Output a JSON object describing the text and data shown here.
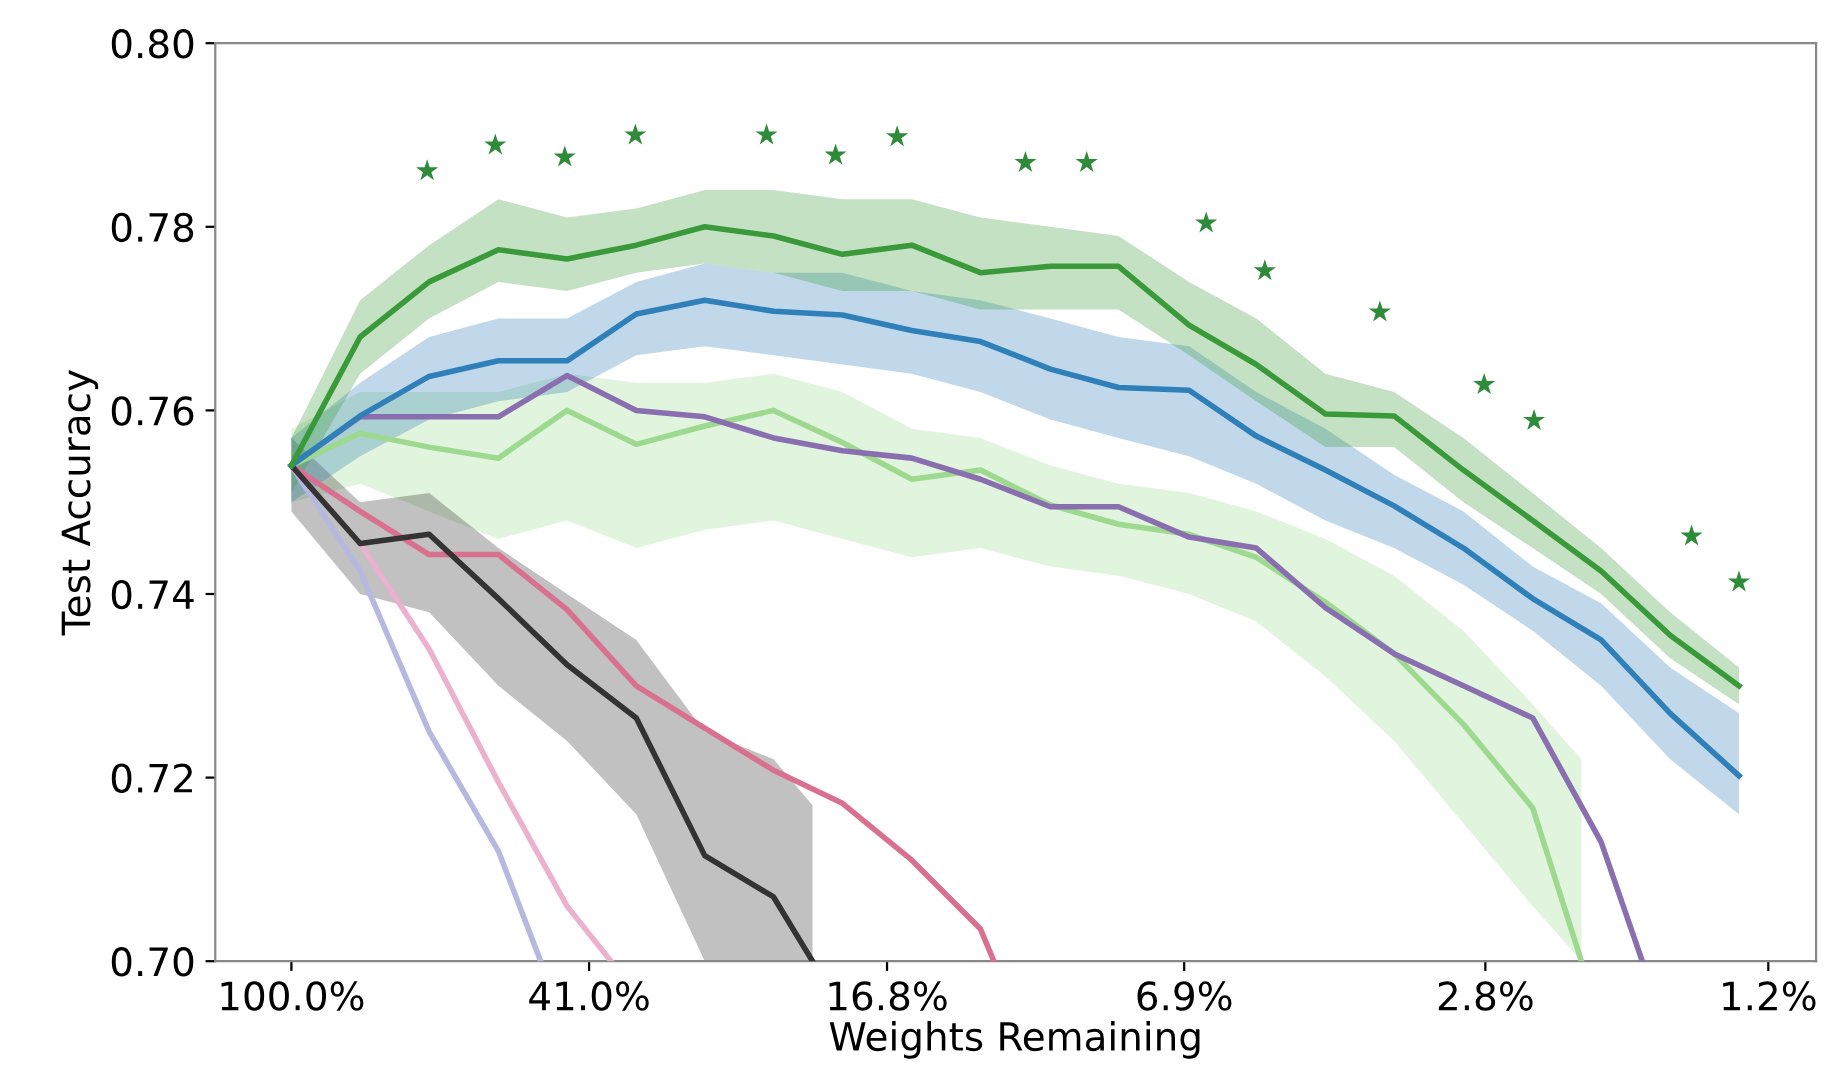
{
  "chart_data": {
    "type": "line",
    "xlabel": "Weights Remaining",
    "ylabel": "Test Accuracy",
    "log": "x",
    "xlim": [
      125.6,
      1.04
    ],
    "ylim": [
      0.7,
      0.8
    ],
    "xticks": [
      {
        "value": 100,
        "label": "100.0%"
      },
      {
        "value": 41.0,
        "label": "41.0%"
      },
      {
        "value": 16.8,
        "label": "16.8%"
      },
      {
        "value": 6.9,
        "label": "6.9%"
      },
      {
        "value": 2.8,
        "label": "2.8%"
      },
      {
        "value": 1.2,
        "label": "1.2%"
      }
    ],
    "yticks": [
      {
        "value": 0.7,
        "label": "0.70"
      },
      0.72,
      0.74,
      0.76,
      0.78,
      {
        "value": 0.8,
        "label": "0.80"
      }
    ],
    "series": [
      {
        "color": "#9dd98f",
        "x": [
          100,
          81.4,
          66.2,
          53.8,
          43.8,
          35.6,
          29.0,
          23.6,
          19.2,
          15.6,
          12.7,
          10.3,
          8.4,
          6.8,
          5.56,
          4.52,
          3.68,
          2.99,
          2.43,
          2.1
        ],
        "values": [
          0.754,
          0.7575,
          0.756,
          0.7548,
          0.76,
          0.7563,
          0.7583,
          0.76,
          0.7565,
          0.7525,
          0.7535,
          0.7497,
          0.7476,
          0.7465,
          0.744,
          0.7391,
          0.7335,
          0.7258,
          0.7167,
          0.7
        ],
        "upper": [
          0.758,
          0.762,
          0.762,
          0.762,
          0.764,
          0.763,
          0.763,
          0.764,
          0.762,
          0.758,
          0.757,
          0.754,
          0.752,
          0.751,
          0.749,
          0.746,
          0.742,
          0.736,
          0.728,
          0.722
        ],
        "lower": [
          0.75,
          0.752,
          0.749,
          0.746,
          0.748,
          0.745,
          0.747,
          0.748,
          0.746,
          0.744,
          0.745,
          0.743,
          0.742,
          0.74,
          0.737,
          0.731,
          0.724,
          0.715,
          0.706,
          0.7
        ]
      },
      {
        "color": "#b6b8e0",
        "x": [
          100,
          81.4,
          66.2,
          53.8,
          47.4
        ],
        "values": [
          0.754,
          0.7425,
          0.725,
          0.712,
          0.7
        ]
      },
      {
        "color": "#ebb1cd",
        "x": [
          100,
          81.4,
          66.2,
          53.8,
          43.8,
          38.4
        ],
        "values": [
          0.754,
          0.7455,
          0.734,
          0.7195,
          0.706,
          0.7
        ]
      },
      {
        "color": "#d9708f",
        "x": [
          100,
          81.4,
          66.2,
          53.8,
          43.8,
          35.6,
          29.0,
          23.6,
          19.2,
          15.6,
          12.7,
          12.2
        ],
        "values": [
          0.754,
          0.749,
          0.7443,
          0.7443,
          0.7383,
          0.73,
          0.7254,
          0.7208,
          0.7172,
          0.711,
          0.7035,
          0.7
        ]
      },
      {
        "color": "#333333",
        "x": [
          100,
          81.4,
          66.2,
          53.8,
          43.8,
          35.6,
          29.0,
          23.6,
          21.0
        ],
        "values": [
          0.754,
          0.7455,
          0.7465,
          0.7395,
          0.7323,
          0.7265,
          0.7115,
          0.707,
          0.7
        ],
        "upper": [
          0.757,
          0.75,
          0.751,
          0.745,
          0.74,
          0.735,
          0.725,
          0.722,
          0.717
        ],
        "lower": [
          0.749,
          0.74,
          0.738,
          0.73,
          0.724,
          0.716,
          0.7,
          0.7,
          0.7
        ]
      },
      {
        "color": "#8a6fb0",
        "x": [
          100,
          81.4,
          66.2,
          53.8,
          43.8,
          35.6,
          29.0,
          23.6,
          19.2,
          15.6,
          12.7,
          10.3,
          8.4,
          6.8,
          5.56,
          4.52,
          3.68,
          2.99,
          2.43,
          1.98,
          1.75
        ],
        "values": [
          0.754,
          0.7593,
          0.7593,
          0.7593,
          0.7638,
          0.76,
          0.7593,
          0.757,
          0.7556,
          0.7548,
          0.7525,
          0.7495,
          0.7495,
          0.7462,
          0.745,
          0.7385,
          0.7335,
          0.73,
          0.7265,
          0.713,
          0.7
        ]
      },
      {
        "color": "#2f7fb8",
        "x": [
          100,
          81.4,
          66.2,
          53.8,
          43.8,
          35.6,
          29.0,
          23.6,
          19.2,
          15.6,
          12.7,
          10.3,
          8.4,
          6.8,
          5.56,
          4.52,
          3.68,
          2.99,
          2.43,
          1.98,
          1.61,
          1.31
        ],
        "values": [
          0.754,
          0.7594,
          0.7637,
          0.7654,
          0.7654,
          0.7705,
          0.772,
          0.7708,
          0.7704,
          0.7687,
          0.7675,
          0.7645,
          0.7625,
          0.7622,
          0.7572,
          0.7535,
          0.7496,
          0.745,
          0.7395,
          0.735,
          0.727,
          0.7202
        ],
        "upper": [
          0.757,
          0.763,
          0.768,
          0.77,
          0.77,
          0.774,
          0.776,
          0.775,
          0.775,
          0.773,
          0.772,
          0.77,
          0.768,
          0.767,
          0.762,
          0.758,
          0.753,
          0.749,
          0.743,
          0.739,
          0.732,
          0.727
        ],
        "lower": [
          0.75,
          0.755,
          0.759,
          0.761,
          0.762,
          0.766,
          0.767,
          0.766,
          0.765,
          0.764,
          0.762,
          0.759,
          0.757,
          0.755,
          0.752,
          0.748,
          0.745,
          0.741,
          0.736,
          0.73,
          0.722,
          0.716
        ]
      },
      {
        "color": "#3a9a3a",
        "x": [
          100,
          81.4,
          66.2,
          53.8,
          43.8,
          35.6,
          29.0,
          23.6,
          19.2,
          15.6,
          12.7,
          10.3,
          8.4,
          6.8,
          5.56,
          4.52,
          3.68,
          2.99,
          2.43,
          1.98,
          1.61,
          1.31
        ],
        "values": [
          0.754,
          0.768,
          0.774,
          0.7775,
          0.7765,
          0.778,
          0.78,
          0.779,
          0.777,
          0.778,
          0.775,
          0.7757,
          0.7757,
          0.7693,
          0.765,
          0.7596,
          0.7594,
          0.7535,
          0.748,
          0.7425,
          0.7355,
          0.73
        ],
        "upper": [
          0.757,
          0.772,
          0.778,
          0.783,
          0.781,
          0.782,
          0.784,
          0.784,
          0.783,
          0.783,
          0.781,
          0.78,
          0.779,
          0.774,
          0.77,
          0.764,
          0.762,
          0.757,
          0.751,
          0.745,
          0.738,
          0.732
        ],
        "lower": [
          0.751,
          0.764,
          0.77,
          0.774,
          0.773,
          0.775,
          0.776,
          0.775,
          0.773,
          0.773,
          0.771,
          0.771,
          0.771,
          0.766,
          0.761,
          0.756,
          0.756,
          0.75,
          0.745,
          0.74,
          0.733,
          0.728
        ]
      },
      {
        "type": "scatter",
        "marker": "star",
        "color": "#2e8b3a",
        "x": [
          66.6,
          54.3,
          44.1,
          35.7,
          24.1,
          19.6,
          16.3,
          11.1,
          9.24,
          6.46,
          5.42,
          3.84,
          2.81,
          2.42,
          1.51,
          1.31
        ],
        "values": [
          0.7861,
          0.7889,
          0.7876,
          0.79,
          0.79,
          0.7878,
          0.7898,
          0.787,
          0.787,
          0.7804,
          0.7752,
          0.7707,
          0.7628,
          0.7589,
          0.7463,
          0.7413
        ]
      }
    ]
  }
}
